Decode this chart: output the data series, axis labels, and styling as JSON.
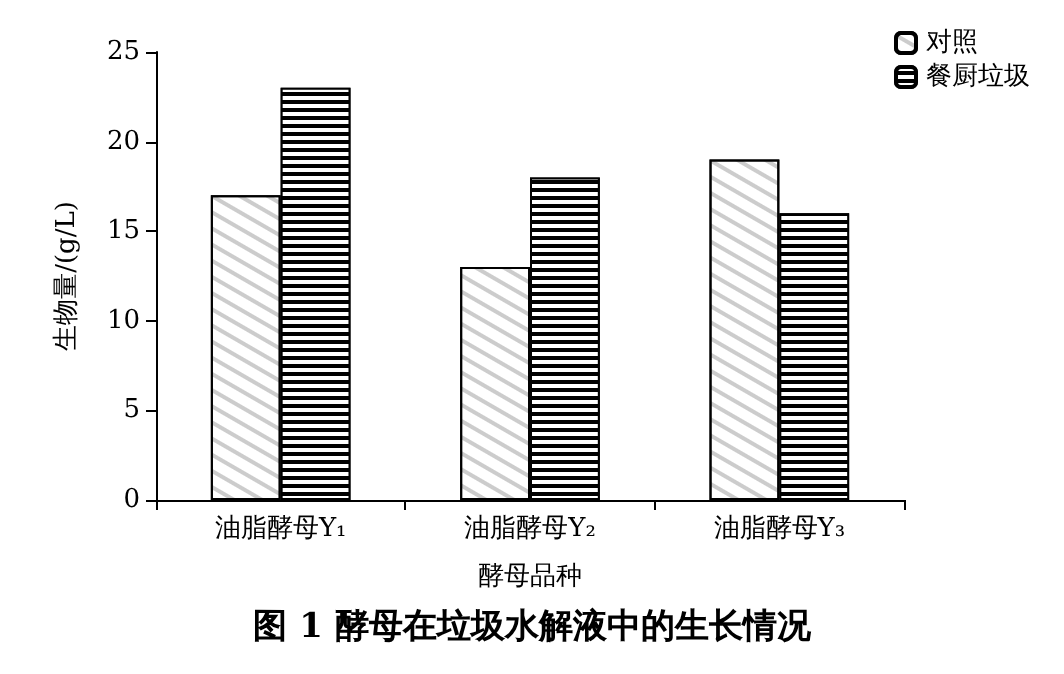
{
  "chart_data": {
    "type": "bar",
    "title": "图 1 酵母在垃圾水解液中的生长情况",
    "xlabel": "酵母品种",
    "ylabel": "生物量/(g/L)",
    "categories": [
      "油脂酵母Y₁",
      "油脂酵母Y₂",
      "油脂酵母Y₃"
    ],
    "series": [
      {
        "name": "对照",
        "color": "#ffffff",
        "values": [
          17,
          13,
          19
        ]
      },
      {
        "name": "餐厨垃圾",
        "color": "#000000",
        "values": [
          23,
          18,
          16
        ]
      }
    ],
    "ylim": [
      0,
      25
    ],
    "yticks": [
      0,
      5,
      10,
      15,
      20,
      25
    ],
    "grid": false,
    "legend": "top right"
  }
}
